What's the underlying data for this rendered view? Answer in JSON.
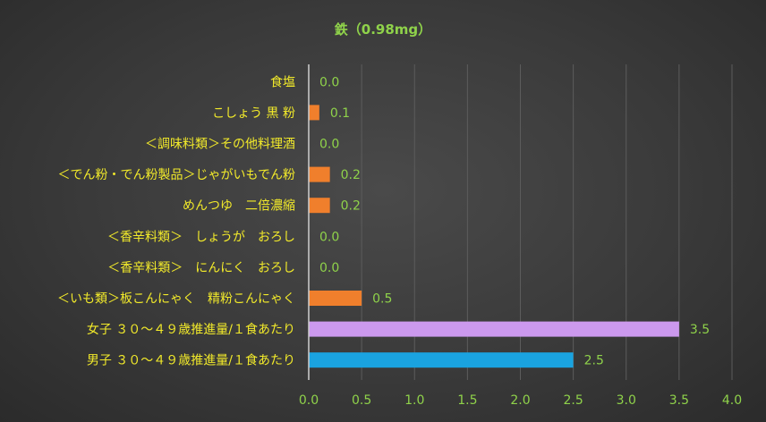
{
  "chart_data": {
    "type": "bar",
    "orientation": "horizontal",
    "title": "鉄（0.98mg）",
    "categories": [
      "食塩",
      "こしょう 黒 粉",
      "＜調味料類＞その他料理酒",
      "＜でん粉・でん粉製品＞じゃがいもでん粉",
      "めんつゆ　二倍濃縮",
      "＜香辛料類＞　しょうが　おろし",
      "＜香辛料類＞　にんにく　おろし",
      "＜いも類＞板こんにゃく　精粉こんにゃく",
      "女子 ３０～４９歳推進量/１食あたり",
      "男子 ３０～４９歳推進量/１食あたり"
    ],
    "values": [
      0.0,
      0.1,
      0.0,
      0.2,
      0.2,
      0.0,
      0.0,
      0.5,
      3.5,
      2.5
    ],
    "value_labels": [
      "0.0",
      "0.1",
      "0.0",
      "0.2",
      "0.2",
      "0.0",
      "0.0",
      "0.5",
      "3.5",
      "2.5"
    ],
    "bar_colors": [
      "#f07f2c",
      "#f07f2c",
      "#f07f2c",
      "#f07f2c",
      "#f07f2c",
      "#f07f2c",
      "#f07f2c",
      "#f07f2c",
      "#cc99ee",
      "#1aa3e0"
    ],
    "xlim": [
      0,
      4
    ],
    "x_ticks": [
      "0.0",
      "0.5",
      "1.0",
      "1.5",
      "2.0",
      "2.5",
      "3.0",
      "3.5",
      "4.0"
    ],
    "xlabel": "",
    "ylabel": "",
    "grid": true,
    "legend": "none",
    "colors": {
      "title": "#8fd24a",
      "category_text": "#f2ea2a",
      "tick_text": "#8fd24a",
      "data_label_text": "#8fd24a"
    }
  }
}
